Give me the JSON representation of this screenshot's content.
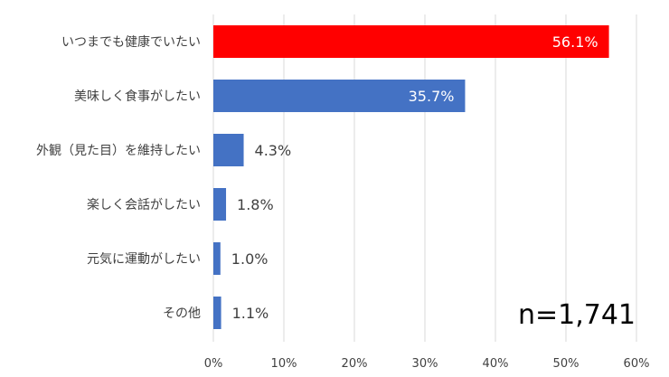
{
  "chart_data": {
    "type": "bar",
    "orientation": "horizontal",
    "categories": [
      "いつまでも健康でいたい",
      "美味しく食事がしたい",
      "外観（見た目）を維持したい",
      "楽しく会話がしたい",
      "元気に運動がしたい",
      "その他"
    ],
    "values": [
      56.1,
      35.7,
      4.3,
      1.8,
      1.0,
      1.1
    ],
    "data_labels": [
      "56.1%",
      "35.7%",
      "4.3%",
      "1.8%",
      "1.0%",
      "1.1%"
    ],
    "bar_colors": [
      "#ff0000",
      "#4472c4",
      "#4472c4",
      "#4472c4",
      "#4472c4",
      "#4472c4"
    ],
    "xlim": [
      0,
      60
    ],
    "xticks": [
      0,
      10,
      20,
      30,
      40,
      50,
      60
    ],
    "xtick_labels": [
      "0%",
      "10%",
      "20%",
      "30%",
      "40%",
      "50%",
      "60%"
    ],
    "grid": "vertical",
    "annotation": "n=1,741",
    "title": "",
    "xlabel": "",
    "ylabel": ""
  }
}
